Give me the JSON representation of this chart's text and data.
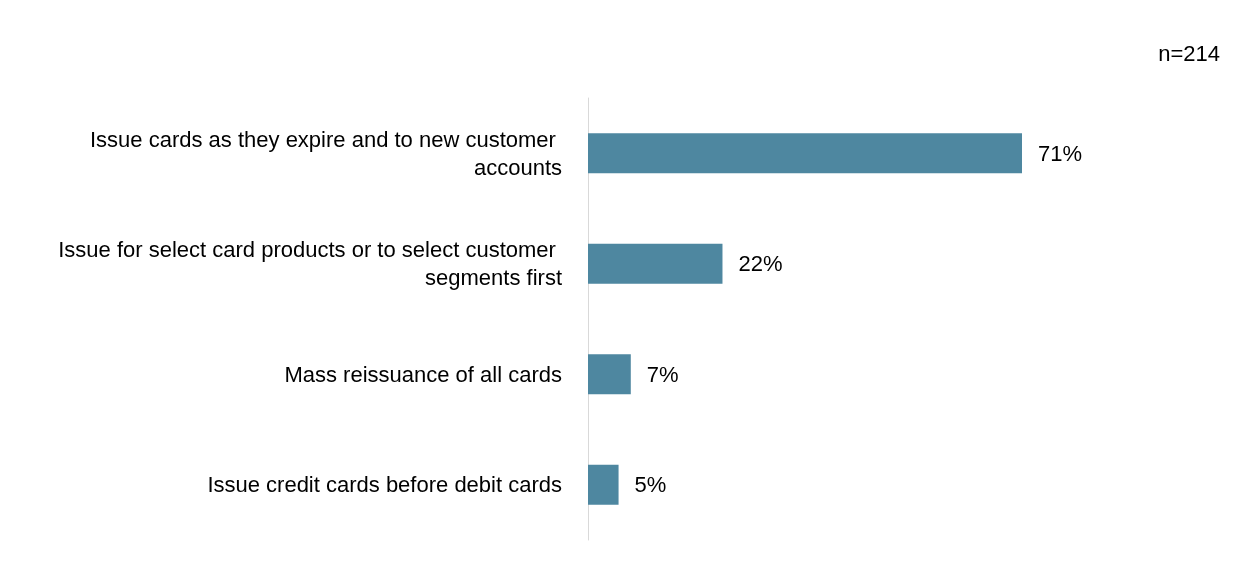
{
  "chart_data": {
    "type": "bar",
    "orientation": "horizontal",
    "categories": [
      "Issue cards as they expire and to new customer accounts",
      "Issue for select card products or to select customer segments first",
      "Mass reissuance of all cards",
      "Issue credit cards before debit cards"
    ],
    "values": [
      71,
      22,
      7,
      5
    ],
    "value_labels": [
      "71%",
      "22%",
      "7%",
      "5%"
    ],
    "color": "#4e87a0",
    "annotations": [
      "n=214"
    ],
    "tick_labels": "y"
  }
}
